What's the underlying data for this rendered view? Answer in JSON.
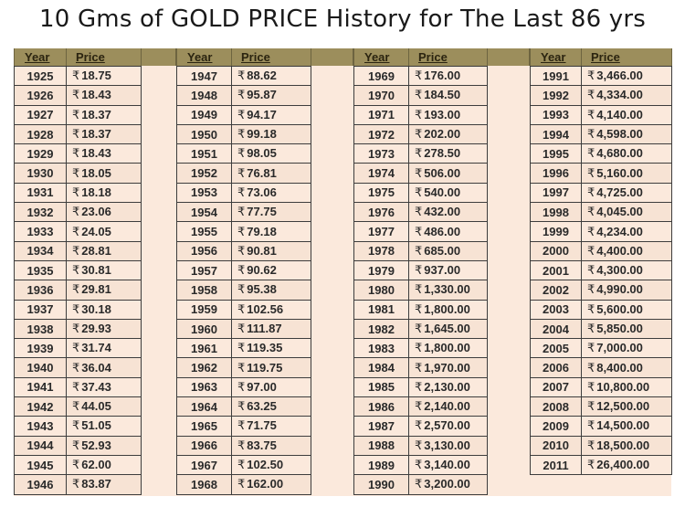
{
  "title": "10 Gms of GOLD PRICE History for The Last 86 yrs",
  "columns": {
    "year": "Year",
    "price": "Price"
  },
  "currency_symbol": "₹",
  "colors": {
    "header_band": "#9c8e5c",
    "row_bg": "#fbe9dc",
    "border": "#3d3d3d"
  },
  "groups": [
    {
      "rows": [
        {
          "year": "1925",
          "price": "18.75"
        },
        {
          "year": "1926",
          "price": "18.43"
        },
        {
          "year": "1927",
          "price": "18.37"
        },
        {
          "year": "1928",
          "price": "18.37"
        },
        {
          "year": "1929",
          "price": "18.43"
        },
        {
          "year": "1930",
          "price": "18.05"
        },
        {
          "year": "1931",
          "price": "18.18"
        },
        {
          "year": "1932",
          "price": "23.06"
        },
        {
          "year": "1933",
          "price": "24.05"
        },
        {
          "year": "1934",
          "price": "28.81"
        },
        {
          "year": "1935",
          "price": "30.81"
        },
        {
          "year": "1936",
          "price": "29.81"
        },
        {
          "year": "1937",
          "price": "30.18"
        },
        {
          "year": "1938",
          "price": "29.93"
        },
        {
          "year": "1939",
          "price": "31.74"
        },
        {
          "year": "1940",
          "price": "36.04"
        },
        {
          "year": "1941",
          "price": "37.43"
        },
        {
          "year": "1942",
          "price": "44.05"
        },
        {
          "year": "1943",
          "price": "51.05"
        },
        {
          "year": "1944",
          "price": "52.93"
        },
        {
          "year": "1945",
          "price": "62.00"
        },
        {
          "year": "1946",
          "price": "83.87"
        }
      ]
    },
    {
      "rows": [
        {
          "year": "1947",
          "price": "88.62"
        },
        {
          "year": "1948",
          "price": "95.87"
        },
        {
          "year": "1949",
          "price": "94.17"
        },
        {
          "year": "1950",
          "price": "99.18"
        },
        {
          "year": "1951",
          "price": "98.05"
        },
        {
          "year": "1952",
          "price": "76.81"
        },
        {
          "year": "1953",
          "price": "73.06"
        },
        {
          "year": "1954",
          "price": "77.75"
        },
        {
          "year": "1955",
          "price": "79.18"
        },
        {
          "year": "1956",
          "price": "90.81"
        },
        {
          "year": "1957",
          "price": "90.62"
        },
        {
          "year": "1958",
          "price": "95.38"
        },
        {
          "year": "1959",
          "price": "102.56"
        },
        {
          "year": "1960",
          "price": "111.87"
        },
        {
          "year": "1961",
          "price": "119.35"
        },
        {
          "year": "1962",
          "price": "119.75"
        },
        {
          "year": "1963",
          "price": "97.00"
        },
        {
          "year": "1964",
          "price": "63.25"
        },
        {
          "year": "1965",
          "price": "71.75"
        },
        {
          "year": "1966",
          "price": "83.75"
        },
        {
          "year": "1967",
          "price": "102.50"
        },
        {
          "year": "1968",
          "price": "162.00"
        }
      ]
    },
    {
      "rows": [
        {
          "year": "1969",
          "price": "176.00"
        },
        {
          "year": "1970",
          "price": "184.50"
        },
        {
          "year": "1971",
          "price": "193.00"
        },
        {
          "year": "1972",
          "price": "202.00"
        },
        {
          "year": "1973",
          "price": "278.50"
        },
        {
          "year": "1974",
          "price": "506.00"
        },
        {
          "year": "1975",
          "price": "540.00"
        },
        {
          "year": "1976",
          "price": "432.00"
        },
        {
          "year": "1977",
          "price": "486.00"
        },
        {
          "year": "1978",
          "price": "685.00"
        },
        {
          "year": "1979",
          "price": "937.00"
        },
        {
          "year": "1980",
          "price": "1,330.00"
        },
        {
          "year": "1981",
          "price": "1,800.00"
        },
        {
          "year": "1982",
          "price": "1,645.00"
        },
        {
          "year": "1983",
          "price": "1,800.00"
        },
        {
          "year": "1984",
          "price": "1,970.00"
        },
        {
          "year": "1985",
          "price": "2,130.00"
        },
        {
          "year": "1986",
          "price": "2,140.00"
        },
        {
          "year": "1987",
          "price": "2,570.00"
        },
        {
          "year": "1988",
          "price": "3,130.00"
        },
        {
          "year": "1989",
          "price": "3,140.00"
        },
        {
          "year": "1990",
          "price": "3,200.00"
        }
      ]
    },
    {
      "rows": [
        {
          "year": "1991",
          "price": "3,466.00"
        },
        {
          "year": "1992",
          "price": "4,334.00"
        },
        {
          "year": "1993",
          "price": "4,140.00"
        },
        {
          "year": "1994",
          "price": "4,598.00"
        },
        {
          "year": "1995",
          "price": "4,680.00"
        },
        {
          "year": "1996",
          "price": "5,160.00"
        },
        {
          "year": "1997",
          "price": "4,725.00"
        },
        {
          "year": "1998",
          "price": "4,045.00"
        },
        {
          "year": "1999",
          "price": "4,234.00"
        },
        {
          "year": "2000",
          "price": "4,400.00"
        },
        {
          "year": "2001",
          "price": "4,300.00"
        },
        {
          "year": "2002",
          "price": "4,990.00"
        },
        {
          "year": "2003",
          "price": "5,600.00"
        },
        {
          "year": "2004",
          "price": "5,850.00"
        },
        {
          "year": "2005",
          "price": "7,000.00"
        },
        {
          "year": "2006",
          "price": "8,400.00"
        },
        {
          "year": "2007",
          "price": "10,800.00"
        },
        {
          "year": "2008",
          "price": "12,500.00"
        },
        {
          "year": "2009",
          "price": "14,500.00"
        },
        {
          "year": "2010",
          "price": "18,500.00"
        },
        {
          "year": "2011",
          "price": "26,400.00"
        }
      ]
    }
  ]
}
